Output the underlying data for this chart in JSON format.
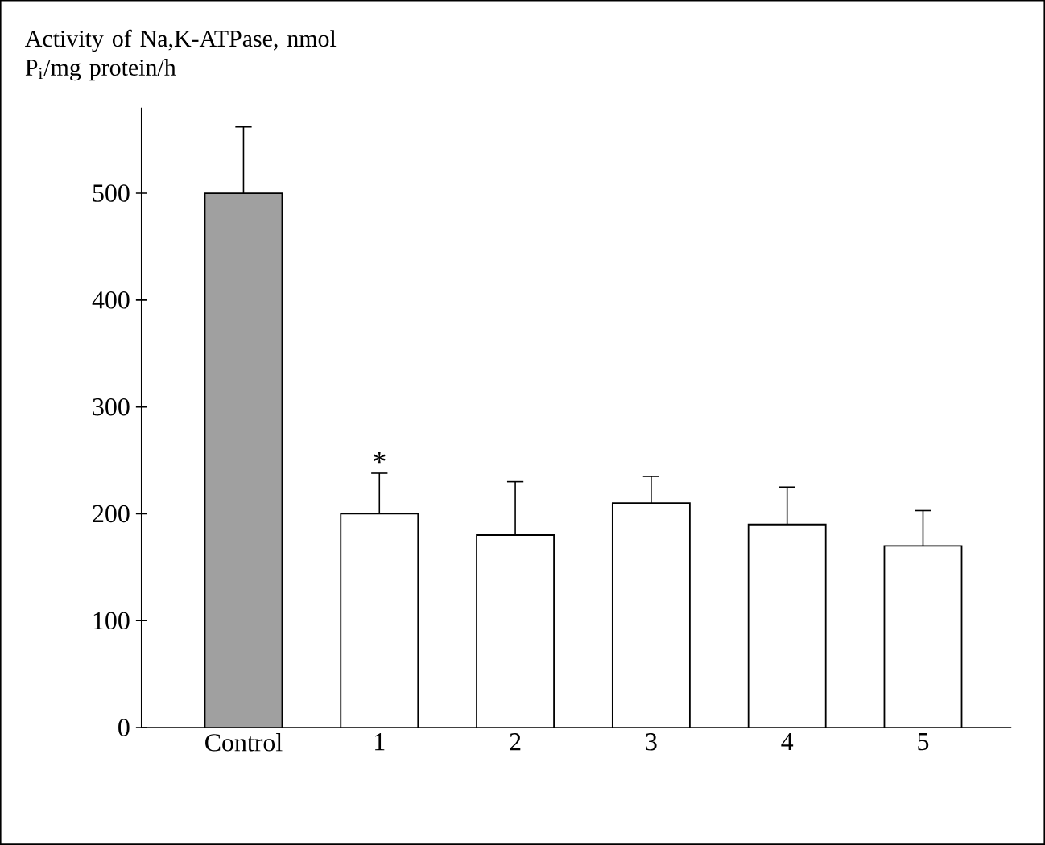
{
  "chart_data": {
    "type": "bar",
    "ylabel": "Activity of Na,K-ATPase, nmol P$_{i}$/mg protein/h",
    "categories": [
      "Control",
      "1",
      "2",
      "3",
      "4",
      "5"
    ],
    "values": [
      500,
      200,
      180,
      210,
      190,
      170
    ],
    "errors": [
      [
        500,
        562
      ],
      [
        200,
        238
      ],
      [
        180,
        230
      ],
      [
        210,
        235
      ],
      [
        190,
        225
      ],
      [
        170,
        203
      ]
    ],
    "colors": [
      "#a0a0a0",
      "#ffffff",
      "#ffffff",
      "#ffffff",
      "#ffffff",
      "#ffffff"
    ],
    "ylim": [
      0,
      580
    ],
    "yticks": [
      0,
      100,
      200,
      300,
      400,
      500
    ],
    "annotations": [
      {
        "text": "*",
        "x": "1",
        "y": 238
      }
    ],
    "grid": false
  }
}
